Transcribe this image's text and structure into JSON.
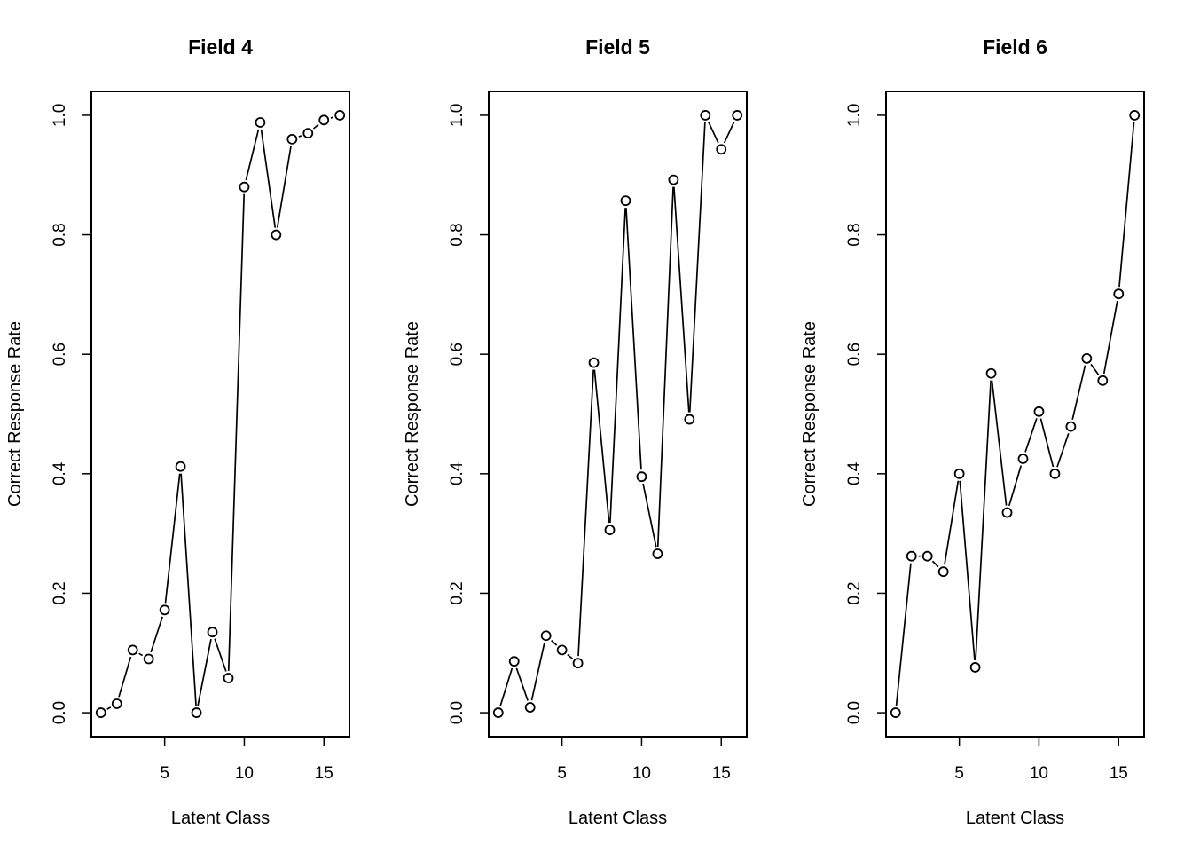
{
  "chart_data": [
    {
      "type": "line",
      "title": "Field 4",
      "xlabel": "Latent Class",
      "ylabel": "Correct Response Rate",
      "x": [
        1,
        2,
        3,
        4,
        5,
        6,
        7,
        8,
        9,
        10,
        11,
        12,
        13,
        14,
        15,
        16
      ],
      "values": [
        0.0,
        0.015,
        0.105,
        0.09,
        0.172,
        0.412,
        0.0,
        0.135,
        0.058,
        0.88,
        0.988,
        0.8,
        0.96,
        0.97,
        0.992,
        1.0
      ],
      "xticks": [
        5,
        10,
        15
      ],
      "xtick_labels": [
        "5",
        "10",
        "15"
      ],
      "yticks": [
        0.0,
        0.2,
        0.4,
        0.6,
        0.8,
        1.0
      ],
      "ytick_labels": [
        "0.0",
        "0.2",
        "0.4",
        "0.6",
        "0.8",
        "1.0"
      ],
      "xlim": [
        0.4,
        16.6
      ],
      "ylim": [
        -0.04,
        1.04
      ],
      "marker": "open-circle",
      "grid": false
    },
    {
      "type": "line",
      "title": "Field 5",
      "xlabel": "Latent Class",
      "ylabel": "Correct Response Rate",
      "x": [
        1,
        2,
        3,
        4,
        5,
        6,
        7,
        8,
        9,
        10,
        11,
        12,
        13,
        14,
        15,
        16
      ],
      "values": [
        0.0,
        0.086,
        0.009,
        0.129,
        0.105,
        0.083,
        0.586,
        0.306,
        0.857,
        0.395,
        0.266,
        0.892,
        0.491,
        1.0,
        0.943,
        1.0
      ],
      "xticks": [
        5,
        10,
        15
      ],
      "xtick_labels": [
        "5",
        "10",
        "15"
      ],
      "yticks": [
        0.0,
        0.2,
        0.4,
        0.6,
        0.8,
        1.0
      ],
      "ytick_labels": [
        "0.0",
        "0.2",
        "0.4",
        "0.6",
        "0.8",
        "1.0"
      ],
      "xlim": [
        0.4,
        16.6
      ],
      "ylim": [
        -0.04,
        1.04
      ],
      "marker": "open-circle",
      "grid": false
    },
    {
      "type": "line",
      "title": "Field 6",
      "xlabel": "Latent Class",
      "ylabel": "Correct Response Rate",
      "x": [
        1,
        2,
        3,
        4,
        5,
        6,
        7,
        8,
        9,
        10,
        11,
        12,
        13,
        14,
        15,
        16
      ],
      "values": [
        0.0,
        0.262,
        0.262,
        0.236,
        0.4,
        0.076,
        0.568,
        0.335,
        0.425,
        0.504,
        0.4,
        0.479,
        0.593,
        0.556,
        0.701,
        1.0
      ],
      "xticks": [
        5,
        10,
        15
      ],
      "xtick_labels": [
        "5",
        "10",
        "15"
      ],
      "yticks": [
        0.0,
        0.2,
        0.4,
        0.6,
        0.8,
        1.0
      ],
      "ytick_labels": [
        "0.0",
        "0.2",
        "0.4",
        "0.6",
        "0.8",
        "1.0"
      ],
      "xlim": [
        0.4,
        16.6
      ],
      "ylim": [
        -0.04,
        1.04
      ],
      "marker": "open-circle",
      "grid": false
    }
  ]
}
